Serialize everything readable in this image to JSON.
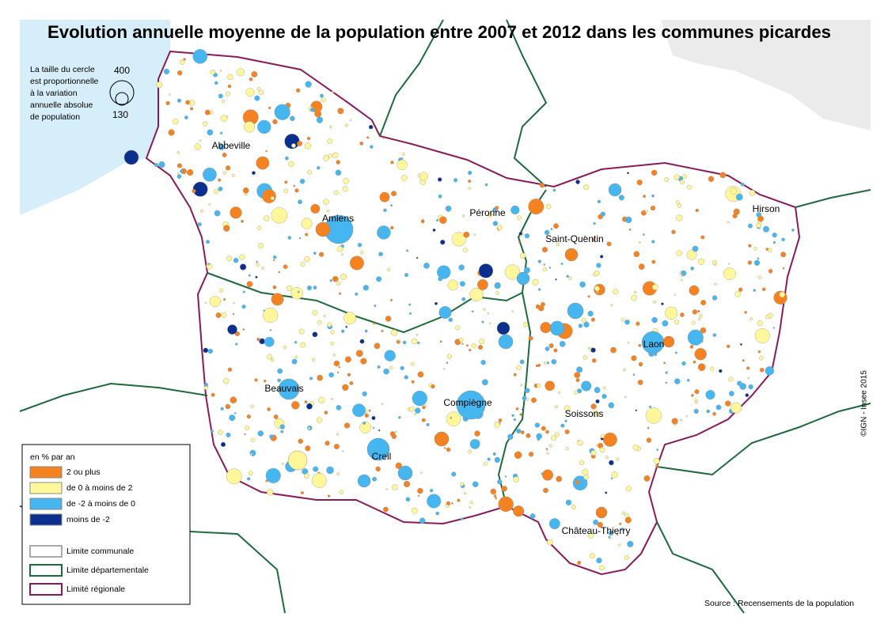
{
  "title": "Evolution annuelle moyenne de la population entre 2007 et 2012 dans les communes picardes",
  "size_legend": {
    "text": [
      "La taille du cercle",
      "est proportionnelle",
      "à la variation",
      "annuelle absolue",
      "de population"
    ],
    "large": "400",
    "small": "130"
  },
  "legend": {
    "title": "en % par an",
    "classes": [
      {
        "label": "2 ou plus",
        "color": "#f58220"
      },
      {
        "label": "de 0 à moins de 2",
        "color": "#fff799"
      },
      {
        "label": "de -2 à moins de 0",
        "color": "#45b6f0"
      },
      {
        "label": "moins de -2",
        "color": "#0a2f8c"
      }
    ],
    "lines": [
      {
        "label": "Limite communale",
        "color": "#aaaaaa"
      },
      {
        "label": "Limite départementale",
        "color": "#1d6a3a"
      },
      {
        "label": "Limité régionale",
        "color": "#8b1a5a"
      }
    ]
  },
  "cities": [
    "Abbeville",
    "Amiens",
    "Péronne",
    "Saint-Quentin",
    "Hirson",
    "Laon",
    "Beauvais",
    "Compiègne",
    "Soissons",
    "Creil",
    "Château-Thierry"
  ],
  "source": "Source : Recensements de la population",
  "copyright": "©IGN - Insee 2015"
}
